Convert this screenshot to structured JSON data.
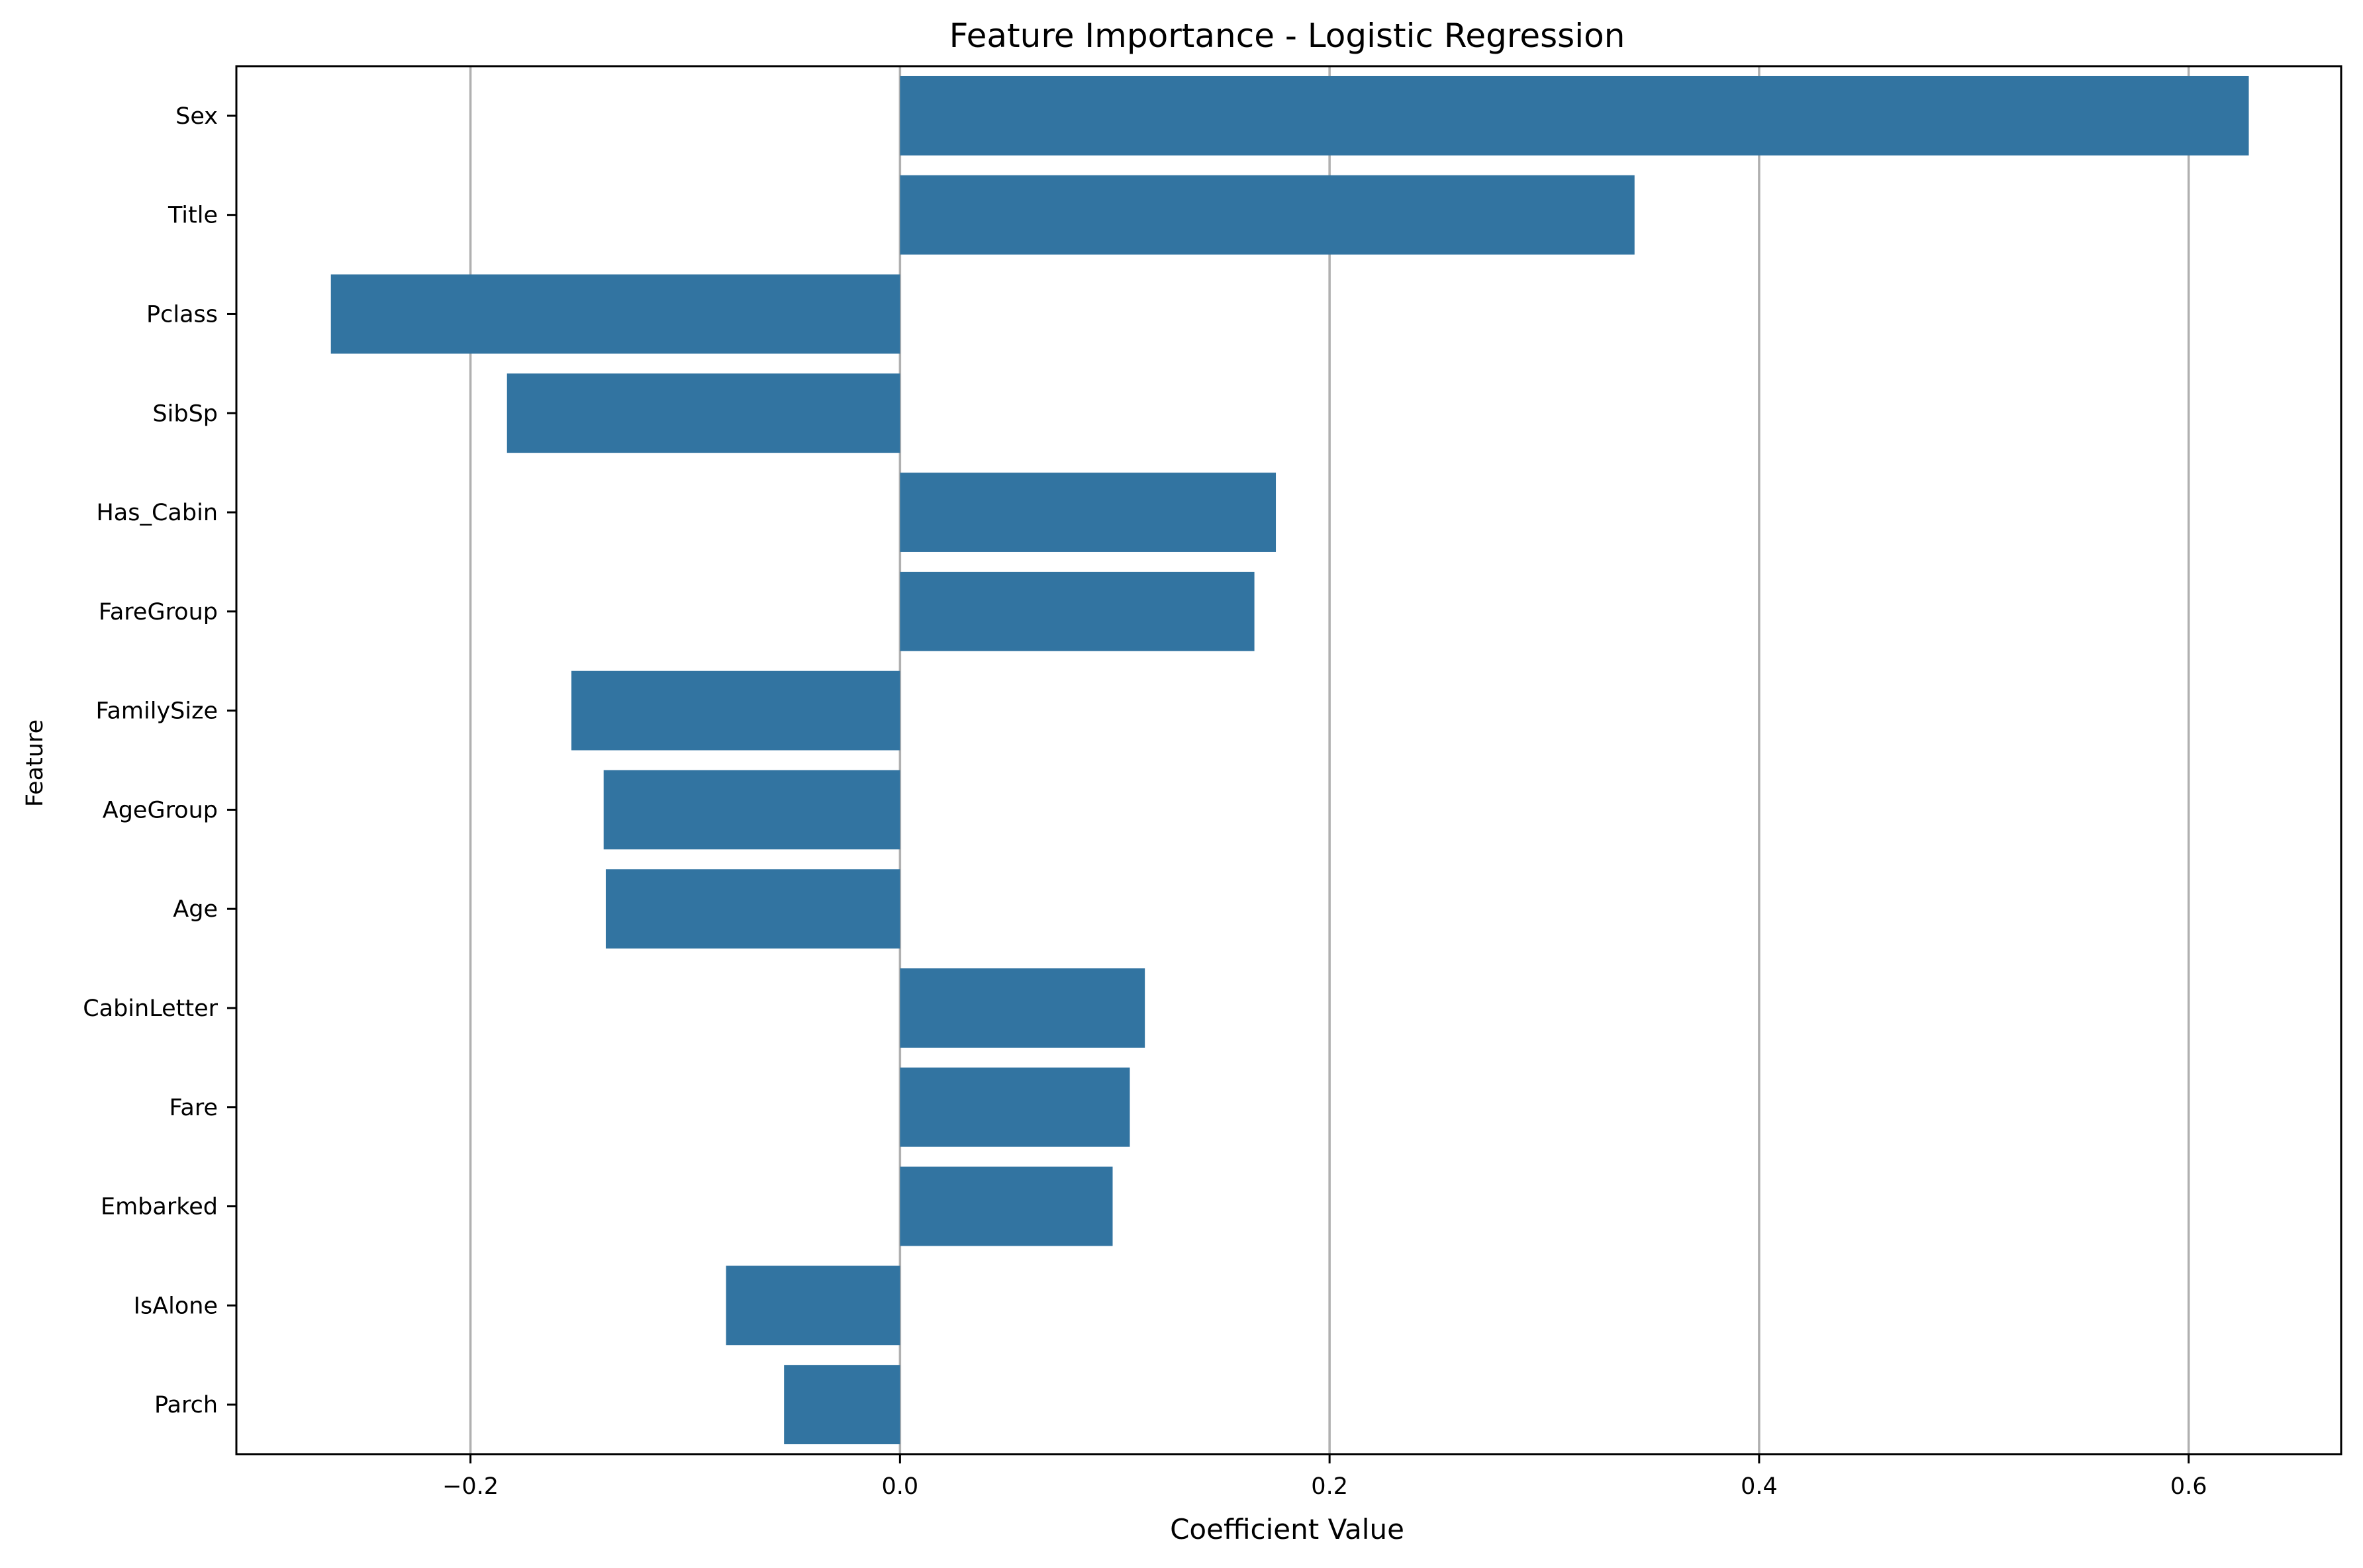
{
  "chart_data": {
    "type": "bar",
    "orientation": "horizontal",
    "title": "Feature Importance - Logistic Regression",
    "xlabel": "Coefficient Value",
    "ylabel": "Feature",
    "categories": [
      "Sex",
      "Title",
      "Pclass",
      "SibSp",
      "Has_Cabin",
      "FareGroup",
      "FamilySize",
      "AgeGroup",
      "Age",
      "CabinLetter",
      "Fare",
      "Embarked",
      "IsAlone",
      "Parch"
    ],
    "values": [
      0.628,
      0.342,
      -0.265,
      -0.183,
      0.175,
      0.165,
      -0.153,
      -0.138,
      -0.137,
      0.114,
      0.107,
      0.099,
      -0.081,
      -0.054
    ],
    "xlim": [
      -0.309,
      0.671
    ],
    "xticks": [
      -0.2,
      0.0,
      0.2,
      0.4,
      0.6
    ],
    "xtick_labels": [
      "−0.2",
      "0.0",
      "0.2",
      "0.4",
      "0.6"
    ],
    "grid": "x-axis vertical lines",
    "legend": "none",
    "bar_color": "#3274a1",
    "grid_color": "#b0b0b0"
  }
}
